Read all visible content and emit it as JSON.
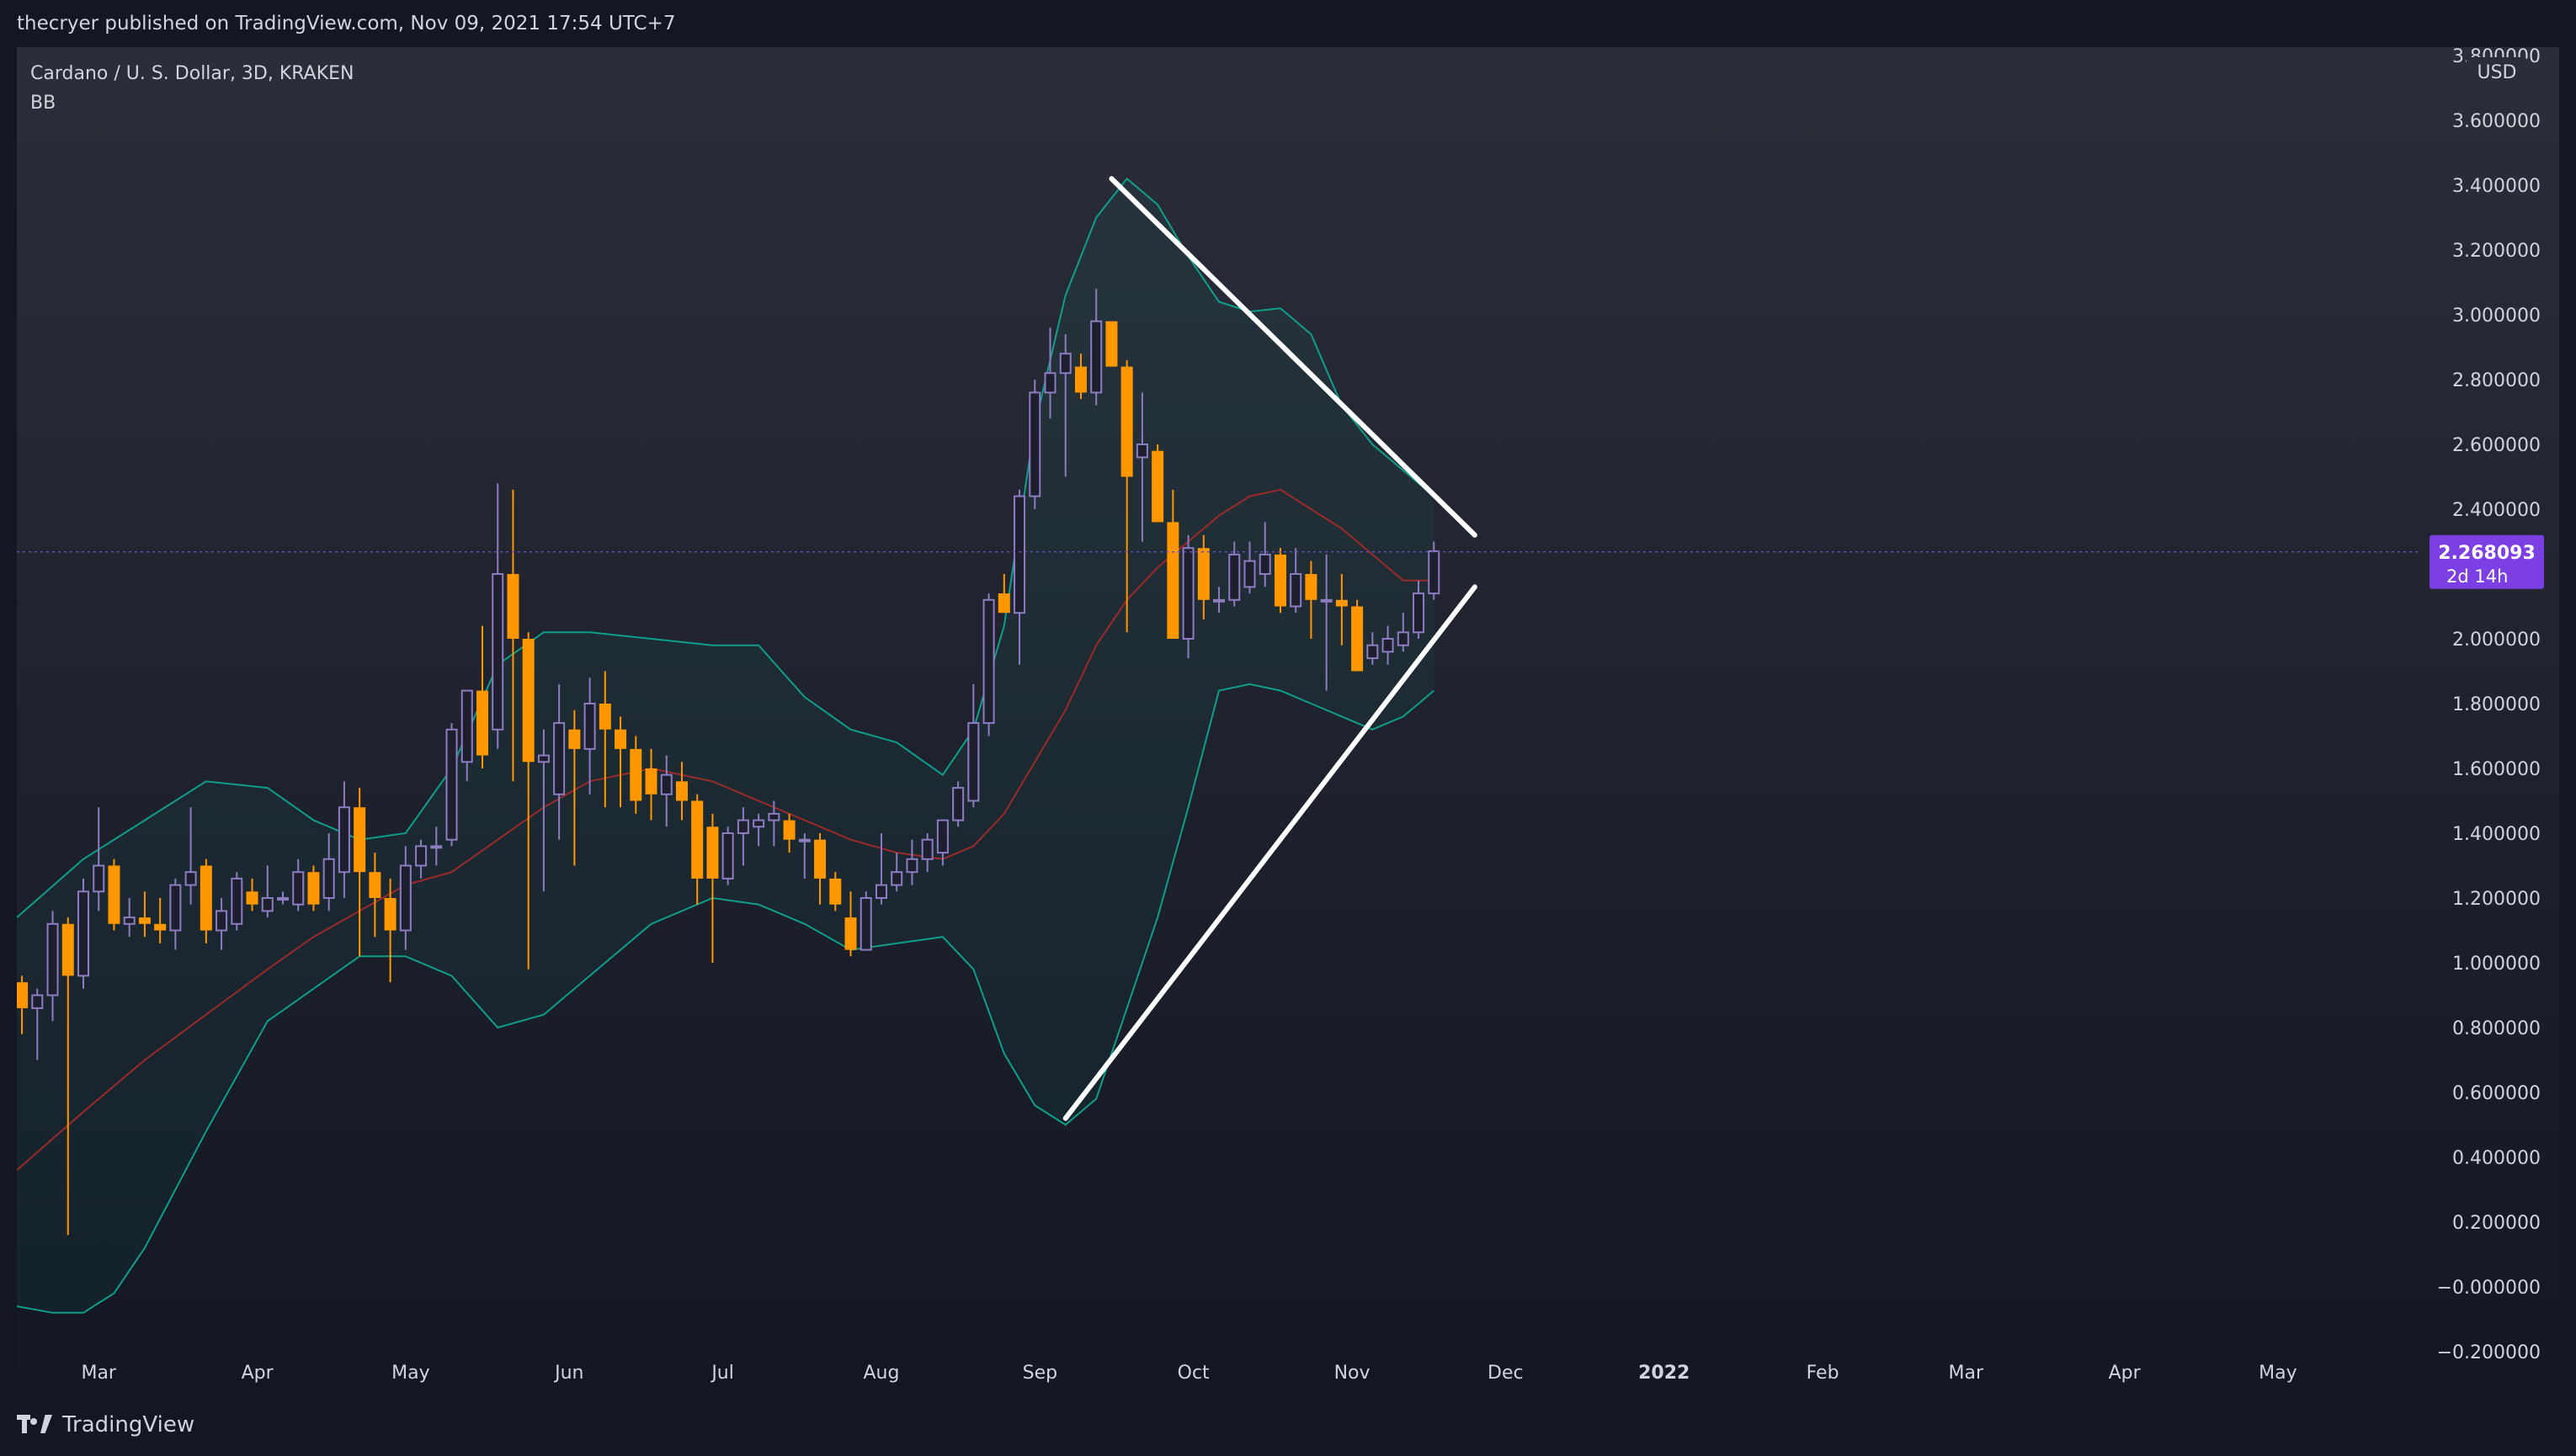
{
  "header": {
    "publish_line": "thecryer published on TradingView.com, Nov 09, 2021 17:54 UTC+7"
  },
  "footer": {
    "brand": "TradingView"
  },
  "legend": {
    "symbol_line": "Cardano / U. S. Dollar, 3D, KRAKEN",
    "indicator": "BB"
  },
  "currency_label": "USD",
  "last_price": {
    "value": "2.268093",
    "countdown": "2d 14h",
    "color": "#7b3fe4",
    "price": 2.268093
  },
  "colors": {
    "background_top": "#2b2e38",
    "background_bottom": "#131722",
    "up_candle": "#8e7cc3",
    "down_candle": "#ff9800",
    "bb_band": "#0f9e8a",
    "bb_basis": "#9c2a2a",
    "trendline": "#ffffff",
    "axis_text": "#d1d4dc"
  },
  "chart_data": {
    "type": "candlestick",
    "title": "Cardano / U. S. Dollar, 3D, KRAKEN",
    "ylim": [
      -0.2,
      3.8
    ],
    "y_ticks": [
      3.8,
      3.6,
      3.4,
      3.2,
      3.0,
      2.8,
      2.6,
      2.4,
      2.0,
      1.8,
      1.6,
      1.4,
      1.2,
      1.0,
      0.8,
      0.6,
      0.4,
      0.2,
      0.0,
      -0.2
    ],
    "y_tick_labels": [
      "3.800000",
      "3.600000",
      "3.400000",
      "3.200000",
      "3.000000",
      "2.800000",
      "2.600000",
      "2.400000",
      "2.000000",
      "1.800000",
      "1.600000",
      "1.400000",
      "1.200000",
      "1.000000",
      "0.800000",
      "0.600000",
      "0.400000",
      "0.200000",
      "−0.000000",
      "−0.200000"
    ],
    "x_range": [
      "2021-02-13",
      "2022-05-28"
    ],
    "x_ticks": [
      {
        "date": "2021-03-01",
        "label": "Mar",
        "bold": false
      },
      {
        "date": "2021-04-01",
        "label": "Apr",
        "bold": false
      },
      {
        "date": "2021-05-01",
        "label": "May",
        "bold": false
      },
      {
        "date": "2021-06-01",
        "label": "Jun",
        "bold": false
      },
      {
        "date": "2021-07-01",
        "label": "Jul",
        "bold": false
      },
      {
        "date": "2021-08-01",
        "label": "Aug",
        "bold": false
      },
      {
        "date": "2021-09-01",
        "label": "Sep",
        "bold": false
      },
      {
        "date": "2021-10-01",
        "label": "Oct",
        "bold": false
      },
      {
        "date": "2021-11-01",
        "label": "Nov",
        "bold": false
      },
      {
        "date": "2021-12-01",
        "label": "Dec",
        "bold": false
      },
      {
        "date": "2022-01-01",
        "label": "2022",
        "bold": true
      },
      {
        "date": "2022-02-01",
        "label": "Feb",
        "bold": false
      },
      {
        "date": "2022-03-01",
        "label": "Mar",
        "bold": false
      },
      {
        "date": "2022-04-01",
        "label": "Apr",
        "bold": false
      },
      {
        "date": "2022-05-01",
        "label": "May",
        "bold": false
      }
    ],
    "candles": [
      {
        "t": "2021-02-14",
        "o": 0.94,
        "h": 0.96,
        "l": 0.78,
        "c": 0.86
      },
      {
        "t": "2021-02-17",
        "o": 0.86,
        "h": 0.92,
        "l": 0.7,
        "c": 0.9
      },
      {
        "t": "2021-02-20",
        "o": 0.9,
        "h": 1.16,
        "l": 0.82,
        "c": 1.12
      },
      {
        "t": "2021-02-23",
        "o": 1.12,
        "h": 1.14,
        "l": 0.16,
        "c": 0.96
      },
      {
        "t": "2021-02-26",
        "o": 0.96,
        "h": 1.26,
        "l": 0.92,
        "c": 1.22
      },
      {
        "t": "2021-03-01",
        "o": 1.22,
        "h": 1.48,
        "l": 1.16,
        "c": 1.3
      },
      {
        "t": "2021-03-04",
        "o": 1.3,
        "h": 1.32,
        "l": 1.1,
        "c": 1.12
      },
      {
        "t": "2021-03-07",
        "o": 1.12,
        "h": 1.2,
        "l": 1.08,
        "c": 1.14
      },
      {
        "t": "2021-03-10",
        "o": 1.14,
        "h": 1.22,
        "l": 1.08,
        "c": 1.12
      },
      {
        "t": "2021-03-13",
        "o": 1.12,
        "h": 1.2,
        "l": 1.06,
        "c": 1.1
      },
      {
        "t": "2021-03-16",
        "o": 1.1,
        "h": 1.26,
        "l": 1.04,
        "c": 1.24
      },
      {
        "t": "2021-03-19",
        "o": 1.24,
        "h": 1.48,
        "l": 1.18,
        "c": 1.28
      },
      {
        "t": "2021-03-22",
        "o": 1.3,
        "h": 1.32,
        "l": 1.06,
        "c": 1.1
      },
      {
        "t": "2021-03-25",
        "o": 1.1,
        "h": 1.2,
        "l": 1.04,
        "c": 1.16
      },
      {
        "t": "2021-03-28",
        "o": 1.12,
        "h": 1.28,
        "l": 1.1,
        "c": 1.26
      },
      {
        "t": "2021-03-31",
        "o": 1.22,
        "h": 1.26,
        "l": 1.16,
        "c": 1.18
      },
      {
        "t": "2021-04-03",
        "o": 1.16,
        "h": 1.3,
        "l": 1.14,
        "c": 1.2
      },
      {
        "t": "2021-04-06",
        "o": 1.2,
        "h": 1.22,
        "l": 1.18,
        "c": 1.2
      },
      {
        "t": "2021-04-09",
        "o": 1.18,
        "h": 1.32,
        "l": 1.16,
        "c": 1.28
      },
      {
        "t": "2021-04-12",
        "o": 1.28,
        "h": 1.3,
        "l": 1.16,
        "c": 1.18
      },
      {
        "t": "2021-04-15",
        "o": 1.2,
        "h": 1.4,
        "l": 1.16,
        "c": 1.32
      },
      {
        "t": "2021-04-18",
        "o": 1.28,
        "h": 1.56,
        "l": 1.2,
        "c": 1.48
      },
      {
        "t": "2021-04-21",
        "o": 1.48,
        "h": 1.54,
        "l": 1.02,
        "c": 1.28
      },
      {
        "t": "2021-04-24",
        "o": 1.28,
        "h": 1.34,
        "l": 1.08,
        "c": 1.2
      },
      {
        "t": "2021-04-27",
        "o": 1.2,
        "h": 1.26,
        "l": 0.94,
        "c": 1.1
      },
      {
        "t": "2021-04-30",
        "o": 1.1,
        "h": 1.36,
        "l": 1.04,
        "c": 1.3
      },
      {
        "t": "2021-05-03",
        "o": 1.3,
        "h": 1.38,
        "l": 1.26,
        "c": 1.36
      },
      {
        "t": "2021-05-06",
        "o": 1.36,
        "h": 1.42,
        "l": 1.3,
        "c": 1.36
      },
      {
        "t": "2021-05-09",
        "o": 1.38,
        "h": 1.74,
        "l": 1.36,
        "c": 1.72
      },
      {
        "t": "2021-05-12",
        "o": 1.62,
        "h": 1.84,
        "l": 1.56,
        "c": 1.84
      },
      {
        "t": "2021-05-15",
        "o": 1.84,
        "h": 2.04,
        "l": 1.6,
        "c": 1.64
      },
      {
        "t": "2021-05-18",
        "o": 1.72,
        "h": 2.48,
        "l": 1.66,
        "c": 2.2
      },
      {
        "t": "2021-05-21",
        "o": 2.2,
        "h": 2.46,
        "l": 1.56,
        "c": 2.0
      },
      {
        "t": "2021-05-24",
        "o": 2.0,
        "h": 2.02,
        "l": 0.98,
        "c": 1.62
      },
      {
        "t": "2021-05-27",
        "o": 1.62,
        "h": 1.72,
        "l": 1.22,
        "c": 1.64
      },
      {
        "t": "2021-05-30",
        "o": 1.52,
        "h": 1.86,
        "l": 1.38,
        "c": 1.74
      },
      {
        "t": "2021-06-02",
        "o": 1.72,
        "h": 1.78,
        "l": 1.3,
        "c": 1.66
      },
      {
        "t": "2021-06-05",
        "o": 1.66,
        "h": 1.88,
        "l": 1.52,
        "c": 1.8
      },
      {
        "t": "2021-06-08",
        "o": 1.8,
        "h": 1.9,
        "l": 1.48,
        "c": 1.72
      },
      {
        "t": "2021-06-11",
        "o": 1.72,
        "h": 1.76,
        "l": 1.48,
        "c": 1.66
      },
      {
        "t": "2021-06-14",
        "o": 1.66,
        "h": 1.7,
        "l": 1.46,
        "c": 1.5
      },
      {
        "t": "2021-06-17",
        "o": 1.6,
        "h": 1.66,
        "l": 1.44,
        "c": 1.52
      },
      {
        "t": "2021-06-20",
        "o": 1.52,
        "h": 1.64,
        "l": 1.42,
        "c": 1.58
      },
      {
        "t": "2021-06-23",
        "o": 1.56,
        "h": 1.62,
        "l": 1.44,
        "c": 1.5
      },
      {
        "t": "2021-06-26",
        "o": 1.5,
        "h": 1.52,
        "l": 1.18,
        "c": 1.26
      },
      {
        "t": "2021-06-29",
        "o": 1.42,
        "h": 1.46,
        "l": 1.0,
        "c": 1.26
      },
      {
        "t": "2021-07-02",
        "o": 1.26,
        "h": 1.42,
        "l": 1.24,
        "c": 1.4
      },
      {
        "t": "2021-07-05",
        "o": 1.4,
        "h": 1.48,
        "l": 1.3,
        "c": 1.44
      },
      {
        "t": "2021-07-08",
        "o": 1.42,
        "h": 1.46,
        "l": 1.36,
        "c": 1.44
      },
      {
        "t": "2021-07-11",
        "o": 1.44,
        "h": 1.5,
        "l": 1.36,
        "c": 1.46
      },
      {
        "t": "2021-07-14",
        "o": 1.44,
        "h": 1.46,
        "l": 1.34,
        "c": 1.38
      },
      {
        "t": "2021-07-17",
        "o": 1.38,
        "h": 1.4,
        "l": 1.26,
        "c": 1.38
      },
      {
        "t": "2021-07-20",
        "o": 1.38,
        "h": 1.4,
        "l": 1.18,
        "c": 1.26
      },
      {
        "t": "2021-07-23",
        "o": 1.26,
        "h": 1.28,
        "l": 1.16,
        "c": 1.18
      },
      {
        "t": "2021-07-26",
        "o": 1.14,
        "h": 1.22,
        "l": 1.02,
        "c": 1.04
      },
      {
        "t": "2021-07-29",
        "o": 1.04,
        "h": 1.22,
        "l": 1.04,
        "c": 1.2
      },
      {
        "t": "2021-08-01",
        "o": 1.2,
        "h": 1.4,
        "l": 1.18,
        "c": 1.24
      },
      {
        "t": "2021-08-04",
        "o": 1.24,
        "h": 1.34,
        "l": 1.22,
        "c": 1.28
      },
      {
        "t": "2021-08-07",
        "o": 1.28,
        "h": 1.38,
        "l": 1.24,
        "c": 1.32
      },
      {
        "t": "2021-08-10",
        "o": 1.32,
        "h": 1.4,
        "l": 1.28,
        "c": 1.38
      },
      {
        "t": "2021-08-13",
        "o": 1.34,
        "h": 1.44,
        "l": 1.3,
        "c": 1.44
      },
      {
        "t": "2021-08-16",
        "o": 1.44,
        "h": 1.56,
        "l": 1.42,
        "c": 1.54
      },
      {
        "t": "2021-08-19",
        "o": 1.5,
        "h": 1.86,
        "l": 1.48,
        "c": 1.74
      },
      {
        "t": "2021-08-22",
        "o": 1.74,
        "h": 2.14,
        "l": 1.7,
        "c": 2.12
      },
      {
        "t": "2021-08-25",
        "o": 2.14,
        "h": 2.2,
        "l": 2.08,
        "c": 2.08
      },
      {
        "t": "2021-08-28",
        "o": 2.08,
        "h": 2.46,
        "l": 1.92,
        "c": 2.44
      },
      {
        "t": "2021-08-31",
        "o": 2.44,
        "h": 2.8,
        "l": 2.4,
        "c": 2.76
      },
      {
        "t": "2021-09-03",
        "o": 2.76,
        "h": 2.96,
        "l": 2.68,
        "c": 2.82
      },
      {
        "t": "2021-09-06",
        "o": 2.82,
        "h": 2.94,
        "l": 2.5,
        "c": 2.88
      },
      {
        "t": "2021-09-09",
        "o": 2.84,
        "h": 2.88,
        "l": 2.74,
        "c": 2.76
      },
      {
        "t": "2021-09-12",
        "o": 2.76,
        "h": 3.08,
        "l": 2.72,
        "c": 2.98
      },
      {
        "t": "2021-09-15",
        "o": 2.98,
        "h": 2.98,
        "l": 2.84,
        "c": 2.84
      },
      {
        "t": "2021-09-18",
        "o": 2.84,
        "h": 2.86,
        "l": 2.02,
        "c": 2.5
      },
      {
        "t": "2021-09-21",
        "o": 2.56,
        "h": 2.76,
        "l": 2.3,
        "c": 2.6
      },
      {
        "t": "2021-09-24",
        "o": 2.58,
        "h": 2.6,
        "l": 2.36,
        "c": 2.36
      },
      {
        "t": "2021-09-27",
        "o": 2.36,
        "h": 2.46,
        "l": 2.0,
        "c": 2.0
      },
      {
        "t": "2021-09-30",
        "o": 2.0,
        "h": 2.32,
        "l": 1.94,
        "c": 2.28
      },
      {
        "t": "2021-10-03",
        "o": 2.28,
        "h": 2.32,
        "l": 2.06,
        "c": 2.12
      },
      {
        "t": "2021-10-06",
        "o": 2.12,
        "h": 2.16,
        "l": 2.08,
        "c": 2.12
      },
      {
        "t": "2021-10-09",
        "o": 2.12,
        "h": 2.3,
        "l": 2.1,
        "c": 2.26
      },
      {
        "t": "2021-10-12",
        "o": 2.16,
        "h": 2.3,
        "l": 2.14,
        "c": 2.24
      },
      {
        "t": "2021-10-15",
        "o": 2.2,
        "h": 2.36,
        "l": 2.16,
        "c": 2.26
      },
      {
        "t": "2021-10-18",
        "o": 2.26,
        "h": 2.28,
        "l": 2.08,
        "c": 2.1
      },
      {
        "t": "2021-10-21",
        "o": 2.1,
        "h": 2.28,
        "l": 2.08,
        "c": 2.2
      },
      {
        "t": "2021-10-24",
        "o": 2.2,
        "h": 2.24,
        "l": 2.0,
        "c": 2.12
      },
      {
        "t": "2021-10-27",
        "o": 2.12,
        "h": 2.26,
        "l": 1.84,
        "c": 2.12
      },
      {
        "t": "2021-10-30",
        "o": 2.12,
        "h": 2.2,
        "l": 1.98,
        "c": 2.1
      },
      {
        "t": "2021-11-02",
        "o": 2.1,
        "h": 2.12,
        "l": 1.9,
        "c": 1.9
      },
      {
        "t": "2021-11-05",
        "o": 1.94,
        "h": 2.02,
        "l": 1.92,
        "c": 1.98
      },
      {
        "t": "2021-11-08",
        "o": 1.96,
        "h": 2.04,
        "l": 1.92,
        "c": 2.0
      },
      {
        "t": "2021-11-11",
        "o": 1.98,
        "h": 2.08,
        "l": 1.96,
        "c": 2.02
      },
      {
        "t": "2021-11-14",
        "o": 2.02,
        "h": 2.18,
        "l": 2.0,
        "c": 2.14
      },
      {
        "t": "2021-11-17",
        "o": 2.14,
        "h": 2.3,
        "l": 2.12,
        "c": 2.27
      }
    ],
    "bb_upper": [
      [
        "2021-02-13",
        1.14
      ],
      [
        "2021-02-26",
        1.32
      ],
      [
        "2021-03-10",
        1.44
      ],
      [
        "2021-03-22",
        1.56
      ],
      [
        "2021-04-03",
        1.54
      ],
      [
        "2021-04-12",
        1.44
      ],
      [
        "2021-04-21",
        1.38
      ],
      [
        "2021-04-30",
        1.4
      ],
      [
        "2021-05-09",
        1.6
      ],
      [
        "2021-05-18",
        1.92
      ],
      [
        "2021-05-27",
        2.02
      ],
      [
        "2021-06-05",
        2.02
      ],
      [
        "2021-06-17",
        2.0
      ],
      [
        "2021-06-29",
        1.98
      ],
      [
        "2021-07-08",
        1.98
      ],
      [
        "2021-07-17",
        1.82
      ],
      [
        "2021-07-26",
        1.72
      ],
      [
        "2021-08-04",
        1.68
      ],
      [
        "2021-08-13",
        1.58
      ],
      [
        "2021-08-19",
        1.72
      ],
      [
        "2021-08-25",
        2.04
      ],
      [
        "2021-08-31",
        2.66
      ],
      [
        "2021-09-06",
        3.06
      ],
      [
        "2021-09-12",
        3.3
      ],
      [
        "2021-09-18",
        3.42
      ],
      [
        "2021-09-24",
        3.34
      ],
      [
        "2021-09-30",
        3.18
      ],
      [
        "2021-10-06",
        3.04
      ],
      [
        "2021-10-12",
        3.01
      ],
      [
        "2021-10-18",
        3.02
      ],
      [
        "2021-10-24",
        2.94
      ],
      [
        "2021-10-30",
        2.72
      ],
      [
        "2021-11-05",
        2.6
      ],
      [
        "2021-11-11",
        2.52
      ],
      [
        "2021-11-17",
        2.44
      ]
    ],
    "bb_basis": [
      [
        "2021-02-13",
        0.36
      ],
      [
        "2021-02-26",
        0.54
      ],
      [
        "2021-03-10",
        0.7
      ],
      [
        "2021-03-22",
        0.84
      ],
      [
        "2021-04-03",
        0.98
      ],
      [
        "2021-04-12",
        1.08
      ],
      [
        "2021-04-21",
        1.16
      ],
      [
        "2021-04-30",
        1.24
      ],
      [
        "2021-05-09",
        1.28
      ],
      [
        "2021-05-18",
        1.38
      ],
      [
        "2021-05-27",
        1.48
      ],
      [
        "2021-06-05",
        1.56
      ],
      [
        "2021-06-17",
        1.6
      ],
      [
        "2021-06-29",
        1.56
      ],
      [
        "2021-07-08",
        1.5
      ],
      [
        "2021-07-17",
        1.44
      ],
      [
        "2021-07-26",
        1.38
      ],
      [
        "2021-08-04",
        1.34
      ],
      [
        "2021-08-13",
        1.32
      ],
      [
        "2021-08-19",
        1.36
      ],
      [
        "2021-08-25",
        1.46
      ],
      [
        "2021-08-31",
        1.62
      ],
      [
        "2021-09-06",
        1.78
      ],
      [
        "2021-09-12",
        1.98
      ],
      [
        "2021-09-18",
        2.12
      ],
      [
        "2021-09-24",
        2.22
      ],
      [
        "2021-09-30",
        2.3
      ],
      [
        "2021-10-06",
        2.38
      ],
      [
        "2021-10-12",
        2.44
      ],
      [
        "2021-10-18",
        2.46
      ],
      [
        "2021-10-24",
        2.4
      ],
      [
        "2021-10-30",
        2.34
      ],
      [
        "2021-11-05",
        2.26
      ],
      [
        "2021-11-11",
        2.18
      ],
      [
        "2021-11-17",
        2.18
      ]
    ],
    "bb_lower": [
      [
        "2021-02-13",
        -0.06
      ],
      [
        "2021-02-20",
        -0.08
      ],
      [
        "2021-02-26",
        -0.08
      ],
      [
        "2021-03-04",
        -0.02
      ],
      [
        "2021-03-10",
        0.12
      ],
      [
        "2021-03-16",
        0.3
      ],
      [
        "2021-03-22",
        0.48
      ],
      [
        "2021-04-03",
        0.82
      ],
      [
        "2021-04-12",
        0.92
      ],
      [
        "2021-04-21",
        1.02
      ],
      [
        "2021-04-30",
        1.02
      ],
      [
        "2021-05-09",
        0.96
      ],
      [
        "2021-05-18",
        0.8
      ],
      [
        "2021-05-27",
        0.84
      ],
      [
        "2021-06-05",
        0.96
      ],
      [
        "2021-06-17",
        1.12
      ],
      [
        "2021-06-29",
        1.2
      ],
      [
        "2021-07-08",
        1.18
      ],
      [
        "2021-07-17",
        1.12
      ],
      [
        "2021-07-26",
        1.04
      ],
      [
        "2021-08-04",
        1.06
      ],
      [
        "2021-08-13",
        1.08
      ],
      [
        "2021-08-19",
        0.98
      ],
      [
        "2021-08-25",
        0.72
      ],
      [
        "2021-08-31",
        0.56
      ],
      [
        "2021-09-06",
        0.5
      ],
      [
        "2021-09-12",
        0.58
      ],
      [
        "2021-09-18",
        0.86
      ],
      [
        "2021-09-24",
        1.14
      ],
      [
        "2021-09-30",
        1.48
      ],
      [
        "2021-10-06",
        1.84
      ],
      [
        "2021-10-12",
        1.86
      ],
      [
        "2021-10-18",
        1.84
      ],
      [
        "2021-10-24",
        1.8
      ],
      [
        "2021-10-30",
        1.76
      ],
      [
        "2021-11-05",
        1.72
      ],
      [
        "2021-11-11",
        1.76
      ],
      [
        "2021-11-17",
        1.84
      ]
    ],
    "trendlines": [
      {
        "from": [
          "2021-09-15",
          3.42
        ],
        "to": [
          "2021-11-25",
          2.32
        ]
      },
      {
        "from": [
          "2021-09-06",
          0.52
        ],
        "to": [
          "2021-11-25",
          2.16
        ]
      }
    ]
  }
}
